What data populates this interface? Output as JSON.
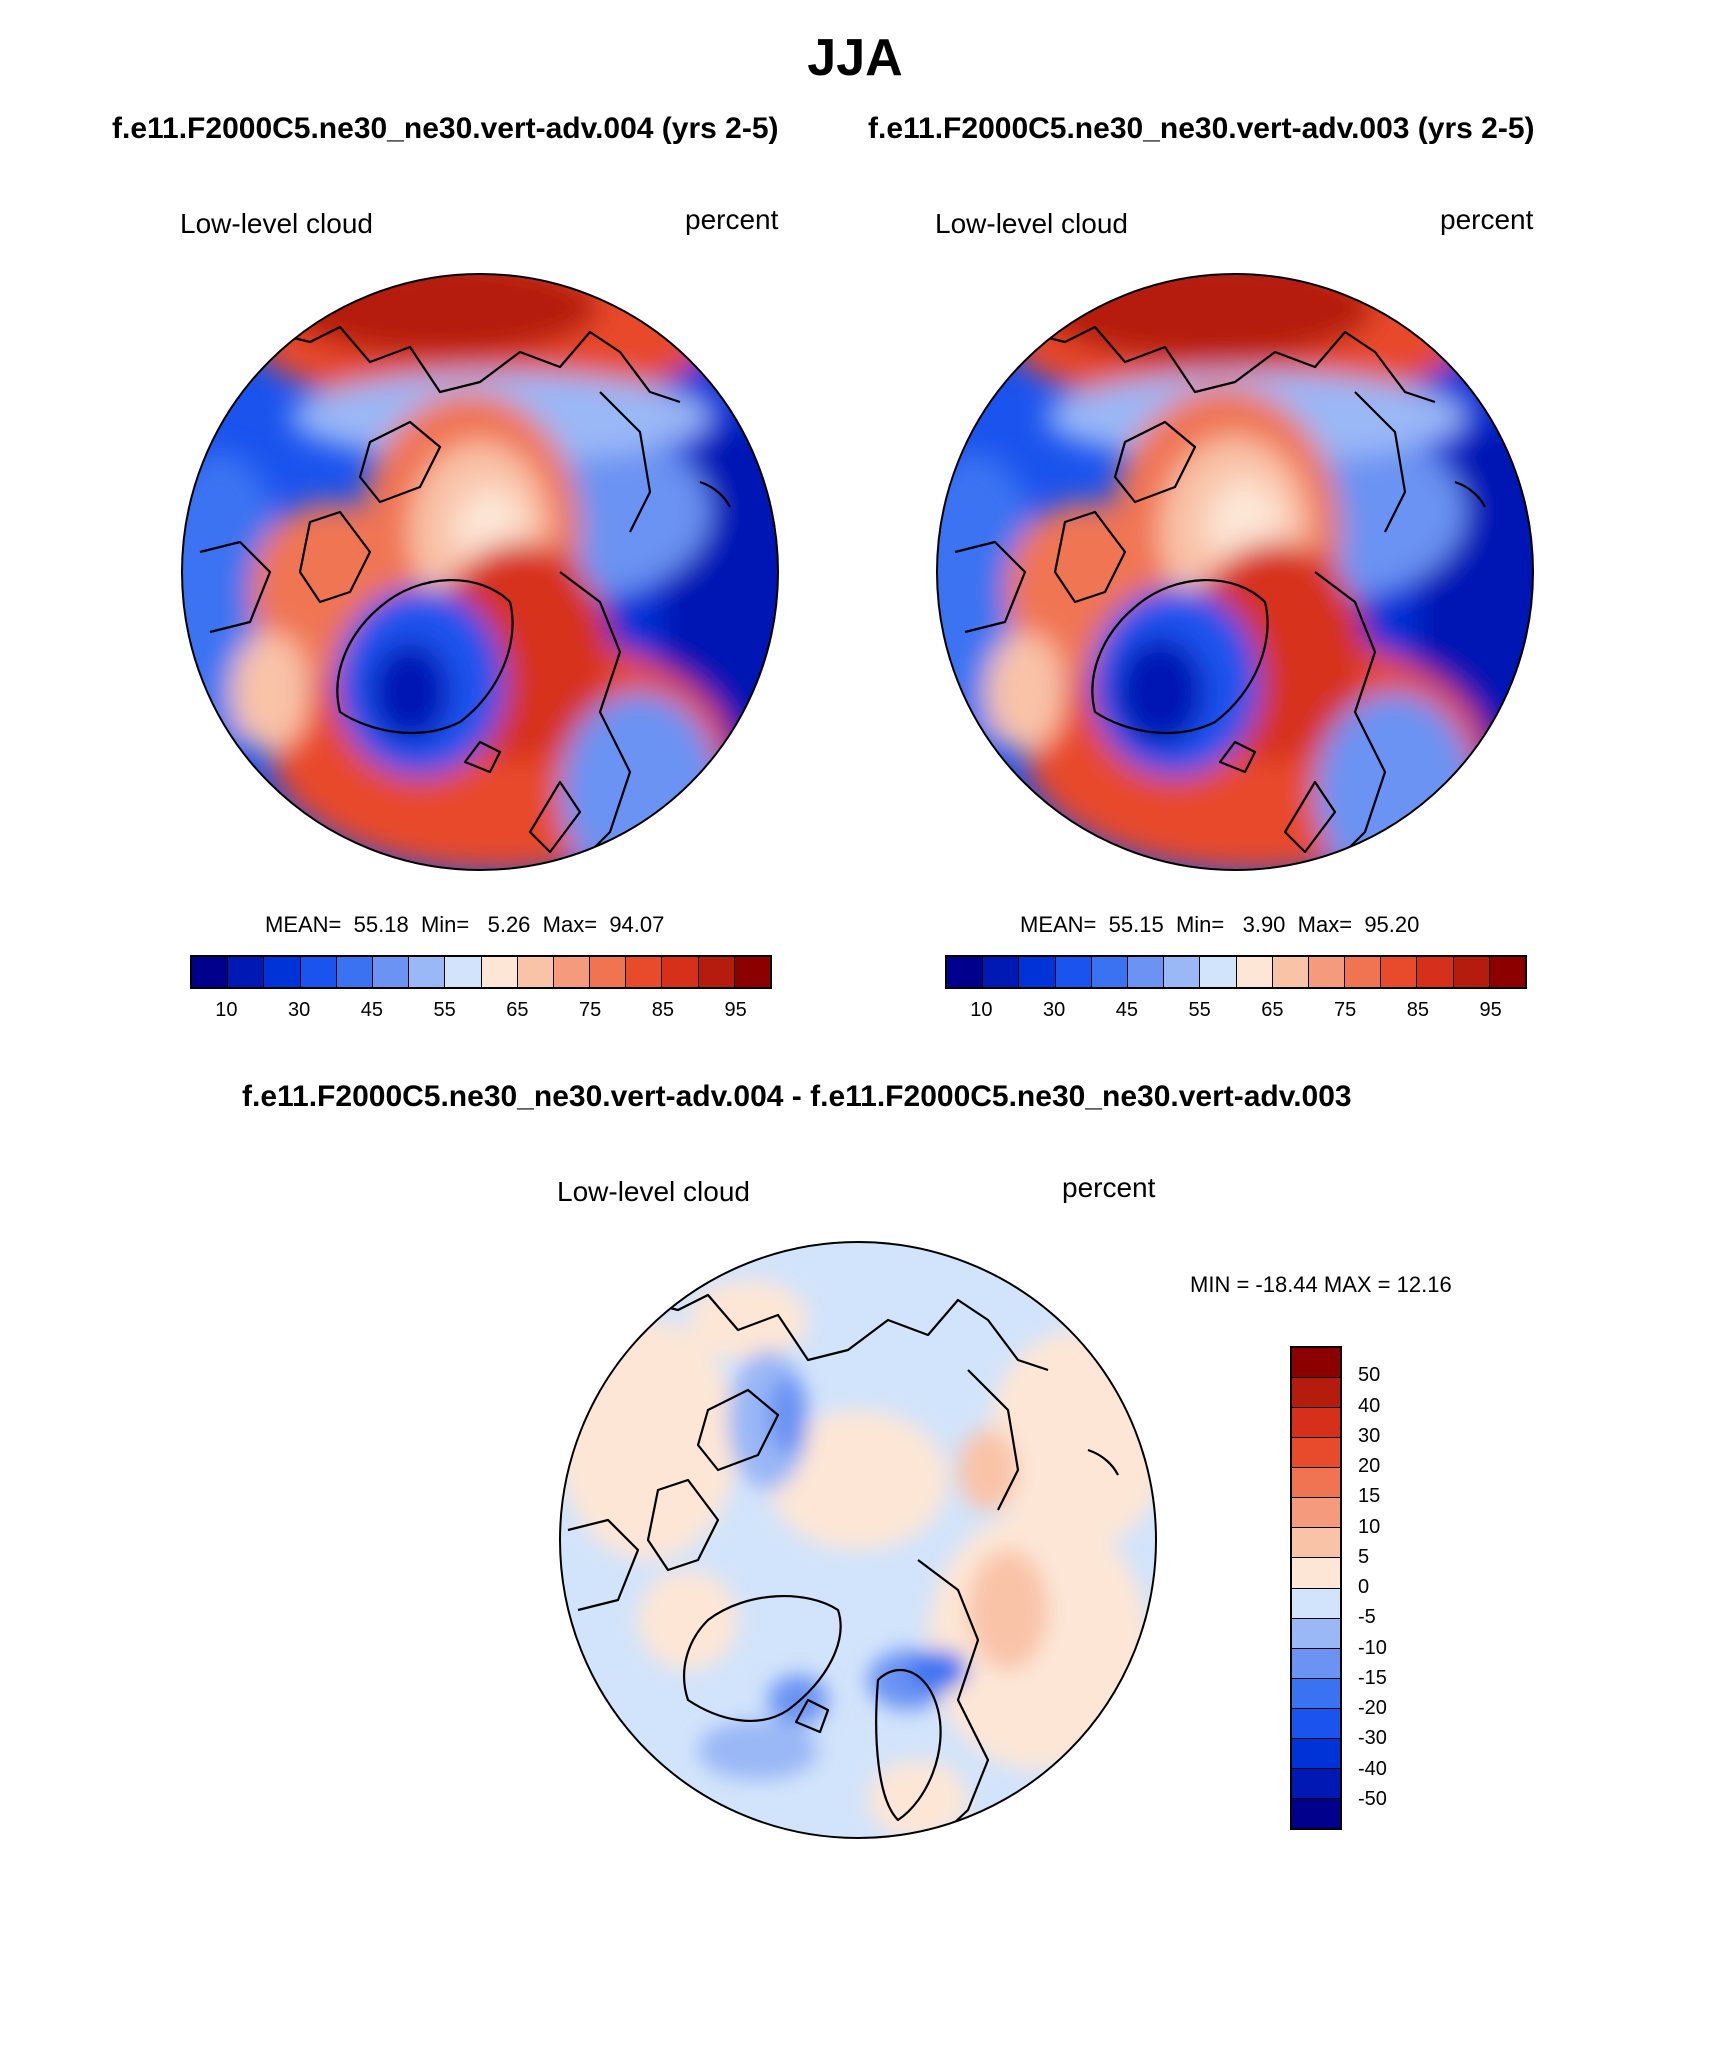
{
  "title": "JJA",
  "subtitle_left": "f.e11.F2000C5.ne30_ne30.vert-adv.004 (yrs 2-5)",
  "subtitle_right": "f.e11.F2000C5.ne30_ne30.vert-adv.003 (yrs 2-5)",
  "diff_title": "f.e11.F2000C5.ne30_ne30.vert-adv.004 - f.e11.F2000C5.ne30_ne30.vert-adv.003",
  "panels": {
    "left": {
      "variable": "Low-level cloud",
      "units": "percent",
      "stats": {
        "mean_label": "MEAN=",
        "mean": "55.18",
        "min_label": "Min=",
        "min": "5.26",
        "max_label": "Max=",
        "max": "94.07"
      }
    },
    "right": {
      "variable": "Low-level cloud",
      "units": "percent",
      "stats": {
        "mean_label": "MEAN=",
        "mean": "55.15",
        "min_label": "Min=",
        "min": "3.90",
        "max_label": "Max=",
        "max": "95.20"
      }
    },
    "diff": {
      "variable": "Low-level cloud",
      "units": "percent",
      "stats_text": "MIN = -18.44 MAX =  12.16"
    }
  },
  "colorbar_abs": {
    "colors": [
      "#00008c",
      "#0019b4",
      "#0033d7",
      "#1a53ee",
      "#3a73f2",
      "#6a93f3",
      "#9ab7f6",
      "#d2e4fb",
      "#fde6d6",
      "#f9c3a8",
      "#f59a7c",
      "#f07452",
      "#e84a2c",
      "#d7301a",
      "#b51c0e",
      "#8c0000"
    ],
    "labels": [
      "10",
      "30",
      "45",
      "55",
      "65",
      "75",
      "85",
      "95"
    ]
  },
  "colorbar_diff": {
    "colors": [
      "#8c0000",
      "#b51c0e",
      "#d7301a",
      "#e84a2c",
      "#f07452",
      "#f59a7c",
      "#f9c3a8",
      "#fde6d6",
      "#d2e4fb",
      "#9ab7f6",
      "#6a93f3",
      "#3a73f2",
      "#1a53ee",
      "#0033d7",
      "#0019b4",
      "#00008c"
    ],
    "labels": [
      "50",
      "40",
      "30",
      "20",
      "15",
      "10",
      "5",
      "0",
      "-5",
      "-10",
      "-15",
      "-20",
      "-30",
      "-40",
      "-50"
    ]
  }
}
